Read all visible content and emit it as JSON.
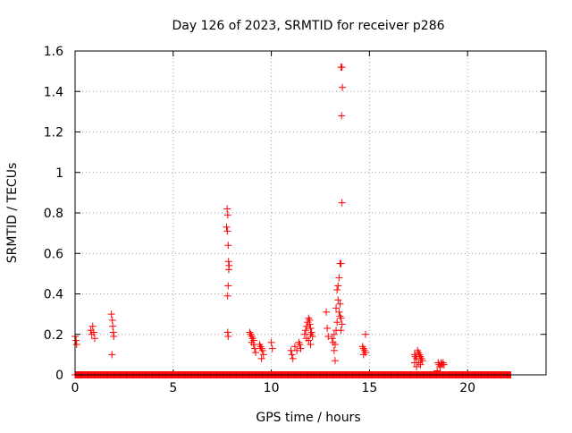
{
  "chart_data": {
    "type": "scatter",
    "title": "Day 126 of 2023, SRMTID for receiver p286",
    "xlabel": "GPS time / hours",
    "ylabel": "SRMTID / TECUs",
    "xlim": [
      0,
      24
    ],
    "ylim": [
      0,
      1.6
    ],
    "x_ticks": [
      0,
      5,
      10,
      15,
      20
    ],
    "x_tick_labels": [
      "0",
      "5",
      "10",
      "15",
      "20"
    ],
    "y_ticks": [
      0,
      0.2,
      0.4,
      0.6,
      0.8,
      1,
      1.2,
      1.4,
      1.6
    ],
    "y_tick_labels": [
      "0",
      "0.2",
      "0.4",
      "0.6",
      "0.8",
      "1",
      "1.2",
      "1.4",
      "1.6"
    ],
    "grid": true,
    "marker": "plus",
    "color": "#ff0000",
    "series": [
      {
        "points": [
          [
            0.0,
            0.19
          ],
          [
            0.05,
            0.17
          ],
          [
            0.08,
            0.15
          ],
          [
            0.8,
            0.22
          ],
          [
            0.85,
            0.2
          ],
          [
            0.9,
            0.24
          ],
          [
            0.95,
            0.21
          ],
          [
            1.0,
            0.18
          ],
          [
            1.85,
            0.3
          ],
          [
            1.9,
            0.27
          ],
          [
            1.92,
            0.24
          ],
          [
            1.95,
            0.21
          ],
          [
            1.97,
            0.19
          ],
          [
            1.88,
            0.1
          ],
          [
            7.75,
            0.82
          ],
          [
            7.78,
            0.79
          ],
          [
            7.72,
            0.73
          ],
          [
            7.76,
            0.71
          ],
          [
            7.8,
            0.64
          ],
          [
            7.82,
            0.56
          ],
          [
            7.85,
            0.54
          ],
          [
            7.83,
            0.52
          ],
          [
            7.8,
            0.44
          ],
          [
            7.77,
            0.39
          ],
          [
            7.78,
            0.21
          ],
          [
            7.8,
            0.19
          ],
          [
            8.9,
            0.21
          ],
          [
            8.95,
            0.2
          ],
          [
            9.0,
            0.19
          ],
          [
            9.05,
            0.18
          ],
          [
            9.1,
            0.17
          ],
          [
            9.0,
            0.16
          ],
          [
            9.1,
            0.15
          ],
          [
            9.15,
            0.13
          ],
          [
            9.2,
            0.11
          ],
          [
            9.4,
            0.15
          ],
          [
            9.45,
            0.14
          ],
          [
            9.5,
            0.13
          ],
          [
            9.55,
            0.12
          ],
          [
            9.6,
            0.1
          ],
          [
            9.5,
            0.08
          ],
          [
            10.0,
            0.16
          ],
          [
            10.05,
            0.13
          ],
          [
            11.0,
            0.12
          ],
          [
            11.05,
            0.1
          ],
          [
            11.1,
            0.08
          ],
          [
            11.2,
            0.14
          ],
          [
            11.3,
            0.12
          ],
          [
            11.4,
            0.16
          ],
          [
            11.45,
            0.15
          ],
          [
            11.5,
            0.13
          ],
          [
            11.7,
            0.2
          ],
          [
            11.75,
            0.22
          ],
          [
            11.8,
            0.24
          ],
          [
            11.85,
            0.26
          ],
          [
            11.9,
            0.28
          ],
          [
            11.95,
            0.25
          ],
          [
            12.0,
            0.23
          ],
          [
            12.05,
            0.21
          ],
          [
            11.8,
            0.18
          ],
          [
            11.9,
            0.17
          ],
          [
            12.0,
            0.2
          ],
          [
            12.1,
            0.19
          ],
          [
            12.0,
            0.15
          ],
          [
            11.95,
            0.27
          ],
          [
            12.8,
            0.31
          ],
          [
            12.85,
            0.23
          ],
          [
            12.9,
            0.19
          ],
          [
            13.1,
            0.18
          ],
          [
            13.15,
            0.16
          ],
          [
            13.2,
            0.2
          ],
          [
            13.25,
            0.15
          ],
          [
            13.2,
            0.12
          ],
          [
            13.25,
            0.07
          ],
          [
            13.3,
            0.22
          ],
          [
            13.35,
            0.26
          ],
          [
            13.3,
            0.33
          ],
          [
            13.35,
            0.42
          ],
          [
            13.4,
            0.44
          ],
          [
            13.45,
            0.48
          ],
          [
            13.4,
            0.37
          ],
          [
            13.45,
            0.31
          ],
          [
            13.5,
            0.29
          ],
          [
            13.5,
            0.55
          ],
          [
            13.55,
            0.55
          ],
          [
            13.5,
            0.35
          ],
          [
            13.55,
            0.28
          ],
          [
            13.6,
            0.25
          ],
          [
            13.55,
            0.22
          ],
          [
            13.6,
            0.85
          ],
          [
            13.58,
            1.28
          ],
          [
            13.62,
            1.42
          ],
          [
            13.55,
            1.52
          ],
          [
            13.6,
            1.52
          ],
          [
            14.65,
            0.14
          ],
          [
            14.7,
            0.13
          ],
          [
            14.75,
            0.12
          ],
          [
            14.8,
            0.11
          ],
          [
            14.7,
            0.1
          ],
          [
            14.8,
            0.2
          ],
          [
            17.3,
            0.1
          ],
          [
            17.35,
            0.09
          ],
          [
            17.4,
            0.08
          ],
          [
            17.45,
            0.12
          ],
          [
            17.5,
            0.11
          ],
          [
            17.55,
            0.1
          ],
          [
            17.6,
            0.09
          ],
          [
            17.65,
            0.08
          ],
          [
            17.7,
            0.07
          ],
          [
            17.5,
            0.06
          ],
          [
            17.6,
            0.05
          ],
          [
            17.4,
            0.04
          ],
          [
            17.3,
            0.06
          ],
          [
            18.5,
            0.06
          ],
          [
            18.55,
            0.05
          ],
          [
            18.6,
            0.04
          ],
          [
            18.65,
            0.06
          ],
          [
            18.7,
            0.05
          ],
          [
            18.75,
            0.06
          ],
          [
            18.8,
            0.05
          ],
          [
            18.45,
            0.02
          ]
        ],
        "zero_segments": [
          [
            0.0,
            22.2
          ]
        ],
        "zero_step": 0.04
      }
    ]
  }
}
